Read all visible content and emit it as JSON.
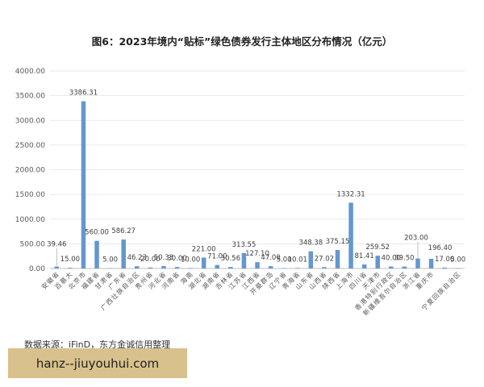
{
  "source": "数据来源：iFinD，东方金诚信用整理",
  "watermark": "hanz--jiuyouhui.com",
  "colors": {
    "bar": "#6497cf",
    "watermark_bg": "#d8c18c"
  },
  "chart_data": {
    "type": "bar",
    "title": "图6：2023年境内“贴标”绿色债券发行主体地区分布情况（亿元）",
    "ylim": [
      0,
      4000
    ],
    "y_ticks": [
      0,
      500,
      1000,
      1500,
      2000,
      2500,
      3000,
      3500,
      4000
    ],
    "grid": true,
    "data_labels": true,
    "categories": [
      "安徽省",
      "百慕大",
      "北京市",
      "福建省",
      "甘肃省",
      "广东省",
      "广西壮族自治区",
      "贵州省",
      "河北省",
      "河南省",
      "海南",
      "湖北省",
      "湖南省",
      "吉林省",
      "江苏省",
      "江西省",
      "开曼群岛",
      "辽宁省",
      "青海省",
      "山东省",
      "山西省",
      "陕西省",
      "上海市",
      "四川省",
      "天津市",
      "香港特别行政区",
      "新疆维吾尔自治区",
      "浙江省",
      "重庆市",
      "",
      "宁夏回族自治区"
    ],
    "values": [
      39.46,
      15.0,
      3386.31,
      560.0,
      5.0,
      586.27,
      46.23,
      20.0,
      50.33,
      30.0,
      10.0,
      221.0,
      71.0,
      30.56,
      313.55,
      127.1,
      47.0,
      5.0,
      10.01,
      348.38,
      27.02,
      375.15,
      1332.31,
      81.41,
      259.52,
      40.0,
      39.5,
      203.0,
      196.4,
      17.0,
      5.0
    ]
  }
}
